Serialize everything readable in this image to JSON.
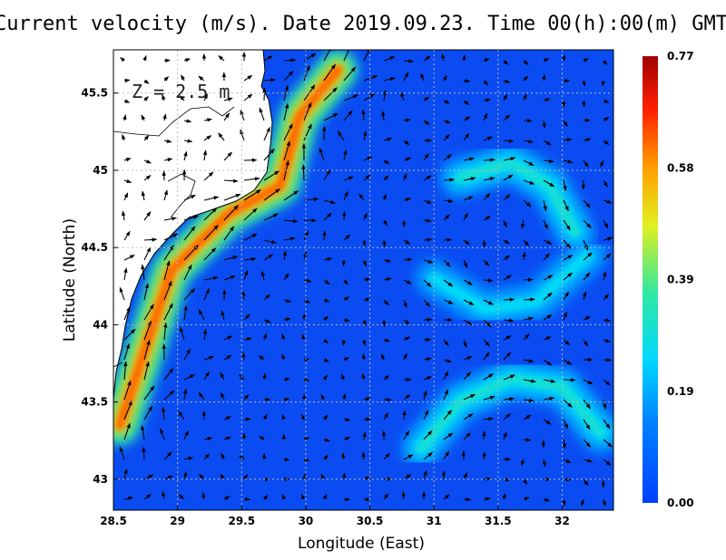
{
  "chart_data": {
    "type": "heatmap",
    "title": "Current velocity (m/s). Date 2019.09.23. Time 00(h):00(m) GMT",
    "xlabel": "Longitude (East)",
    "ylabel": "Latitude (North)",
    "annotation": "Z = 2.5 m",
    "xlim": [
      28.5,
      32.4
    ],
    "ylim": [
      42.8,
      45.78
    ],
    "xticks": [
      28.5,
      29,
      29.5,
      30,
      30.5,
      31,
      31.5,
      32
    ],
    "yticks": [
      43,
      43.5,
      44,
      44.5,
      45,
      45.5
    ],
    "grid": true,
    "colorbar": {
      "min": 0.0,
      "max": 0.77,
      "ticks": [
        "0.00",
        "0.19",
        "0.39",
        "0.58",
        "0.77"
      ],
      "colormap": "jet"
    },
    "features": [
      {
        "name": "coastal-jet",
        "path": [
          [
            28.55,
            43.35
          ],
          [
            28.75,
            43.85
          ],
          [
            28.95,
            44.35
          ],
          [
            29.4,
            44.72
          ],
          [
            29.8,
            44.9
          ],
          [
            29.95,
            45.35
          ],
          [
            30.25,
            45.65
          ]
        ],
        "speed": 0.62
      },
      {
        "name": "southern-arc",
        "path": [
          [
            30.9,
            43.2
          ],
          [
            31.2,
            43.5
          ],
          [
            31.6,
            43.65
          ],
          [
            32.0,
            43.6
          ],
          [
            32.3,
            43.3
          ]
        ],
        "speed": 0.3
      },
      {
        "name": "mid-band",
        "path": [
          [
            31.0,
            44.3
          ],
          [
            31.4,
            44.1
          ],
          [
            31.8,
            44.15
          ],
          [
            32.2,
            44.45
          ]
        ],
        "speed": 0.26
      },
      {
        "name": "eastern-eddy",
        "path": [
          [
            31.2,
            44.95
          ],
          [
            31.6,
            45.05
          ],
          [
            31.9,
            44.9
          ],
          [
            32.1,
            44.6
          ]
        ],
        "speed": 0.3
      }
    ]
  }
}
